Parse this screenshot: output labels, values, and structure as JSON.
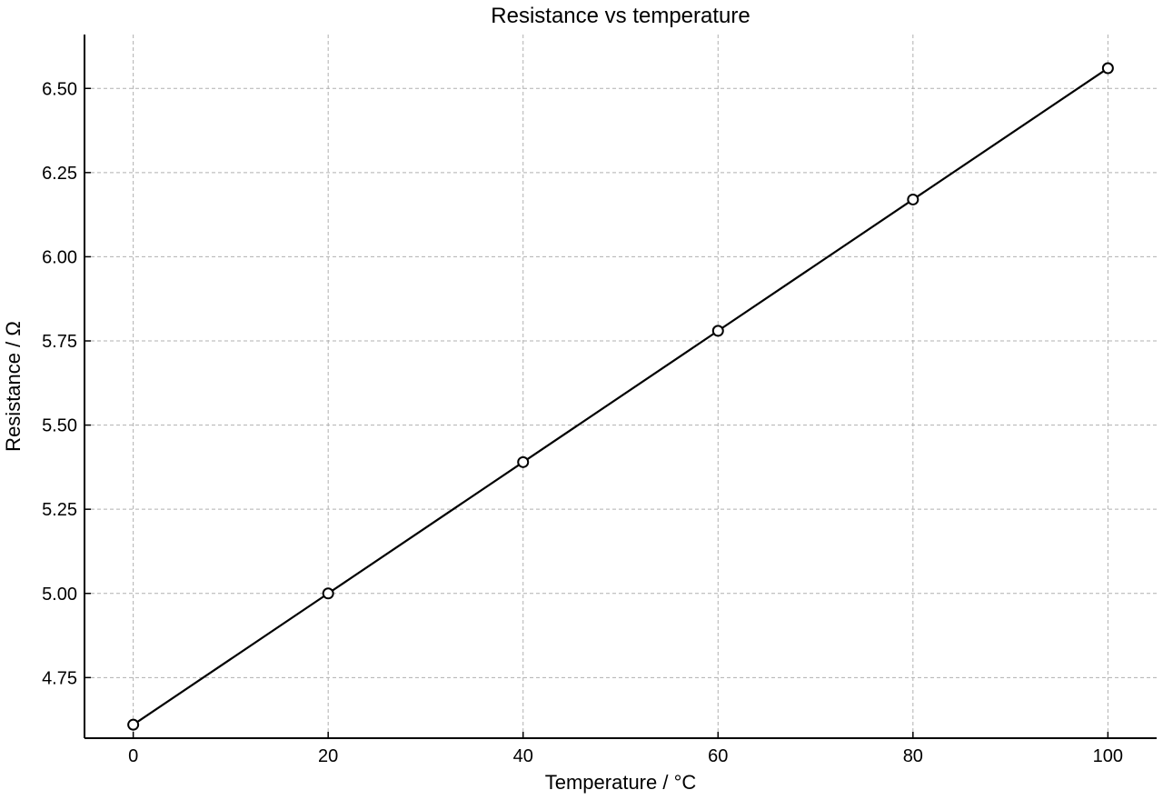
{
  "chart_data": {
    "type": "line",
    "title": "Resistance vs temperature",
    "xlabel": "Temperature / °C",
    "ylabel": "Resistance / Ω",
    "x": [
      0,
      20,
      40,
      60,
      80,
      100
    ],
    "series": [
      {
        "values": [
          4.61,
          5.0,
          5.39,
          5.78,
          6.17,
          6.56
        ],
        "color": "#000000",
        "marker": "open-circle"
      }
    ],
    "xlim": [
      -5,
      105
    ],
    "ylim": [
      4.57,
      6.66
    ],
    "xticks": [
      0,
      20,
      40,
      60,
      80,
      100
    ],
    "xtick_labels": [
      "0",
      "20",
      "40",
      "60",
      "80",
      "100"
    ],
    "yticks": [
      4.75,
      5.0,
      5.25,
      5.5,
      5.75,
      6.0,
      6.25,
      6.5
    ],
    "ytick_labels": [
      "4.75",
      "5.00",
      "5.25",
      "5.50",
      "5.75",
      "6.00",
      "6.25",
      "6.50"
    ],
    "grid": true,
    "grid_style": "dashed",
    "grid_color": "#b0b0b0",
    "legend": "none"
  }
}
